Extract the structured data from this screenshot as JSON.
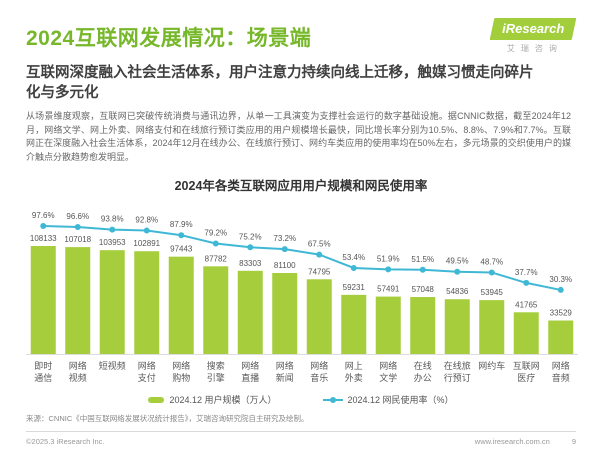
{
  "header": {
    "title": "2024互联网发展情况：场景端",
    "logo": {
      "brand": "iResearch",
      "brand_cn": "艾瑞咨询"
    },
    "subtitle": "互联网深度融入社会生活体系，用户注意力持续向线上迁移，触媒习惯走向碎片化与多元化",
    "paragraph": "从场景维度观察，互联网已突破传统消费与通讯边界，从单一工具演变为支撑社会运行的数字基础设施。据CNNIC数据，截至2024年12月，网络文学、网上外卖、网络支付和在线旅行预订类应用的用户规模增长最快，同比增长率分别为10.5%、8.8%、7.9%和7.7%。互联网正在深度融入社会生活体系，2024年12月在线办公、在线旅行预订、网约车类应用的使用率均在50%左右，多元场景的交织使用户的媒介触点分散趋势愈发明显。"
  },
  "chart_data": {
    "type": "bar",
    "title": "2024年各类互联网应用用户规模和网民使用率",
    "categories": [
      "即时通信",
      "网络视频",
      "短视频",
      "网络支付",
      "网络购物",
      "搜索引擎",
      "网络直播",
      "网络新闻",
      "网络音乐",
      "网上外卖",
      "网络文学",
      "在线办公",
      "在线旅行预订",
      "网约车",
      "互联网医疗",
      "网络音频"
    ],
    "category_lines": [
      [
        "即时",
        "通信"
      ],
      [
        "网络",
        "视频"
      ],
      [
        "短视频"
      ],
      [
        "网络",
        "支付"
      ],
      [
        "网络",
        "购物"
      ],
      [
        "搜索",
        "引擎"
      ],
      [
        "网络",
        "直播"
      ],
      [
        "网络",
        "新闻"
      ],
      [
        "网络",
        "音乐"
      ],
      [
        "网上",
        "外卖"
      ],
      [
        "网络",
        "文学"
      ],
      [
        "在线",
        "办公"
      ],
      [
        "在线旅",
        "行预订"
      ],
      [
        "网约车"
      ],
      [
        "互联网",
        "医疗"
      ],
      [
        "网络",
        "音频"
      ]
    ],
    "series": [
      {
        "name": "2024.12 用户规模（万人）",
        "type": "bar",
        "color": "#a5cd3c",
        "values": [
          108133,
          107018,
          103953,
          102891,
          97443,
          87782,
          83303,
          81100,
          74795,
          59231,
          57491,
          57048,
          54836,
          53945,
          41765,
          33529
        ]
      },
      {
        "name": "2024.12 网民使用率（%）",
        "type": "line",
        "color": "#3fb8d5",
        "values": [
          97.6,
          96.6,
          93.8,
          92.8,
          87.9,
          79.2,
          75.2,
          73.2,
          67.5,
          53.4,
          51.9,
          51.5,
          49.5,
          48.7,
          37.7,
          30.3
        ]
      }
    ],
    "ylabel": "",
    "xlabel": "",
    "grid": false,
    "legend_position": "bottom"
  },
  "footer": {
    "source": "来源：CNNIC《中国互联网络发展状况统计报告》，艾瑞咨询研究院自主研究及绘制。",
    "copyright": "©2025.3 iResearch Inc.",
    "website": "www.iresearch.com.cn",
    "page_number": "9"
  }
}
